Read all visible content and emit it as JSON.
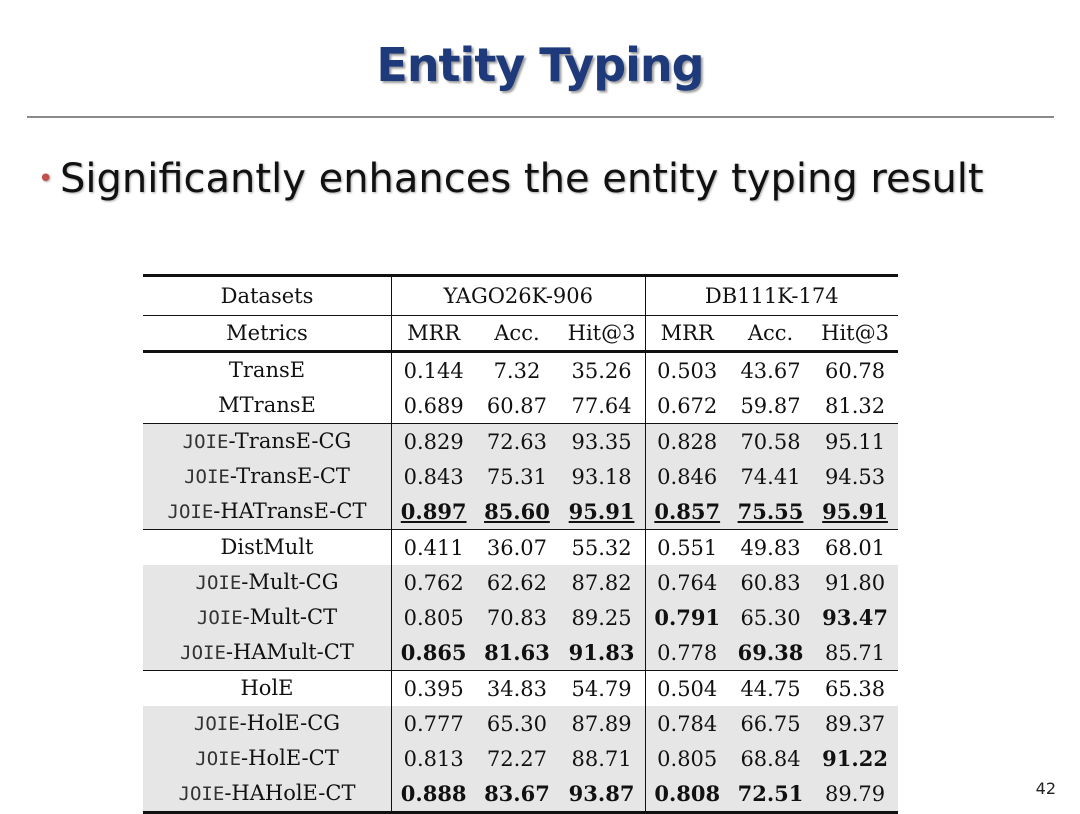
{
  "slide": {
    "title": "Entity Typing",
    "bullet": "Significantly enhances the entity typing result",
    "page_number": "42"
  },
  "table": {
    "header": {
      "datasets_label": "Datasets",
      "dataset1": "YAGO26K-906",
      "dataset2": "DB111K-174",
      "metrics_label": "Metrics",
      "metrics": [
        "MRR",
        "Acc.",
        "Hit@3",
        "MRR",
        "Acc.",
        "Hit@3"
      ]
    },
    "rows": [
      {
        "prefix": "",
        "method": "TransE",
        "values": [
          "0.144",
          "7.32",
          "35.26",
          "0.503",
          "43.67",
          "60.78"
        ]
      },
      {
        "prefix": "",
        "method": "MTransE",
        "values": [
          "0.689",
          "60.87",
          "77.64",
          "0.672",
          "59.87",
          "81.32"
        ]
      },
      {
        "prefix": "JOIE",
        "method": "-TransE-CG",
        "values": [
          "0.829",
          "72.63",
          "93.35",
          "0.828",
          "70.58",
          "95.11"
        ]
      },
      {
        "prefix": "JOIE",
        "method": "-TransE-CT",
        "values": [
          "0.843",
          "75.31",
          "93.18",
          "0.846",
          "74.41",
          "94.53"
        ]
      },
      {
        "prefix": "JOIE",
        "method": "-HATransE-CT",
        "values": [
          "0.897",
          "85.60",
          "95.91",
          "0.857",
          "75.55",
          "95.91"
        ]
      },
      {
        "prefix": "",
        "method": "DistMult",
        "values": [
          "0.411",
          "36.07",
          "55.32",
          "0.551",
          "49.83",
          "68.01"
        ]
      },
      {
        "prefix": "JOIE",
        "method": "-Mult-CG",
        "values": [
          "0.762",
          "62.62",
          "87.82",
          "0.764",
          "60.83",
          "91.80"
        ]
      },
      {
        "prefix": "JOIE",
        "method": "-Mult-CT",
        "values": [
          "0.805",
          "70.83",
          "89.25",
          "0.791",
          "65.30",
          "93.47"
        ]
      },
      {
        "prefix": "JOIE",
        "method": "-HAMult-CT",
        "values": [
          "0.865",
          "81.63",
          "91.83",
          "0.778",
          "69.38",
          "85.71"
        ]
      },
      {
        "prefix": "",
        "method": "HolE",
        "values": [
          "0.395",
          "34.83",
          "54.79",
          "0.504",
          "44.75",
          "65.38"
        ]
      },
      {
        "prefix": "JOIE",
        "method": "-HolE-CG",
        "values": [
          "0.777",
          "65.30",
          "87.89",
          "0.784",
          "66.75",
          "89.37"
        ]
      },
      {
        "prefix": "JOIE",
        "method": "-HolE-CT",
        "values": [
          "0.813",
          "72.27",
          "88.71",
          "0.805",
          "68.84",
          "91.22"
        ]
      },
      {
        "prefix": "JOIE",
        "method": "-HAHolE-CT",
        "values": [
          "0.888",
          "83.67",
          "93.87",
          "0.808",
          "72.51",
          "89.79"
        ]
      }
    ]
  }
}
